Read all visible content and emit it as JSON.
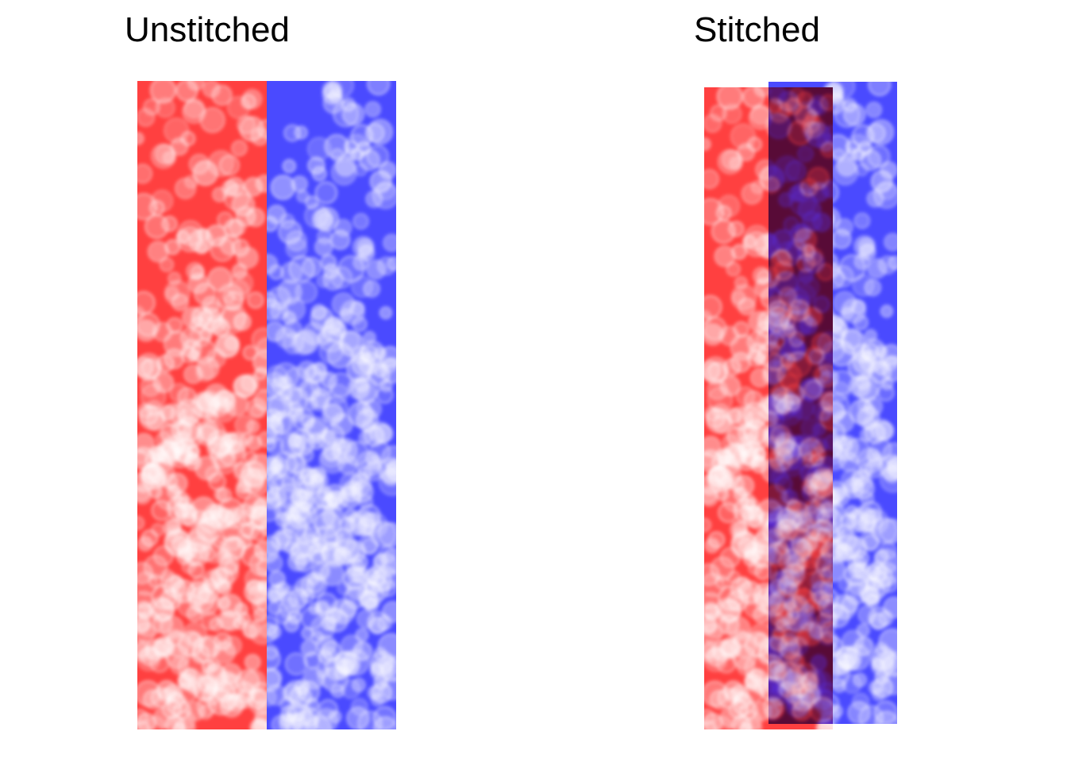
{
  "panels": {
    "left": {
      "title": "Unstitched"
    },
    "right": {
      "title": "Stitched"
    }
  },
  "colors": {
    "red_tile": "#ff4040",
    "blue_tile": "#4a4aff",
    "overlap": "#4a18d8",
    "cells": "#ffffff",
    "background": "#ffffff"
  },
  "image_description_terms": {
    "content": "fluorescence microscopy nuclei tiles",
    "left_layout": "two tiles side by side",
    "right_layout": "two tiles overlapping"
  }
}
